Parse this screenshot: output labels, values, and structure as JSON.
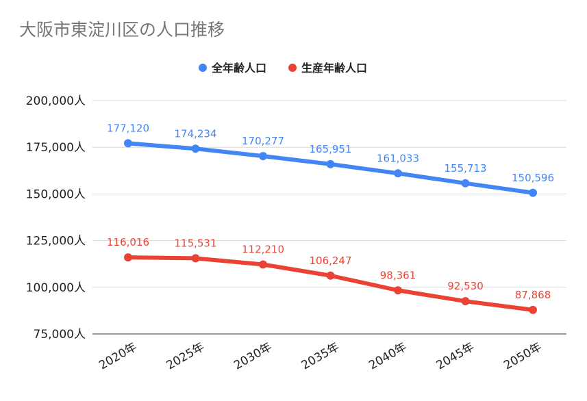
{
  "chart_data": {
    "type": "line",
    "title": "大阪市東淀川区の人口推移",
    "categories": [
      "2020年",
      "2025年",
      "2030年",
      "2035年",
      "2040年",
      "2045年",
      "2050年"
    ],
    "series": [
      {
        "name": "全年齢人口",
        "color": "#4285f4",
        "values": [
          177120,
          174234,
          170277,
          165951,
          161033,
          155713,
          150596
        ],
        "labels": [
          "177,120",
          "174,234",
          "170,277",
          "165,951",
          "161,033",
          "155,713",
          "150,596"
        ]
      },
      {
        "name": "生産年齢人口",
        "color": "#ea4335",
        "values": [
          116016,
          115531,
          112210,
          106247,
          98361,
          92530,
          87868
        ],
        "labels": [
          "116,016",
          "115,531",
          "112,210",
          "106,247",
          "98,361",
          "92,530",
          "87,868"
        ]
      }
    ],
    "ylim": [
      75000,
      200000
    ],
    "yticks": [
      200000,
      175000,
      150000,
      125000,
      100000,
      75000
    ],
    "ytick_labels": [
      "200,000人",
      "175,000人",
      "150,000人",
      "125,000人",
      "100,000人",
      "75,000人"
    ],
    "grid": true,
    "legend_position": "top-center"
  }
}
